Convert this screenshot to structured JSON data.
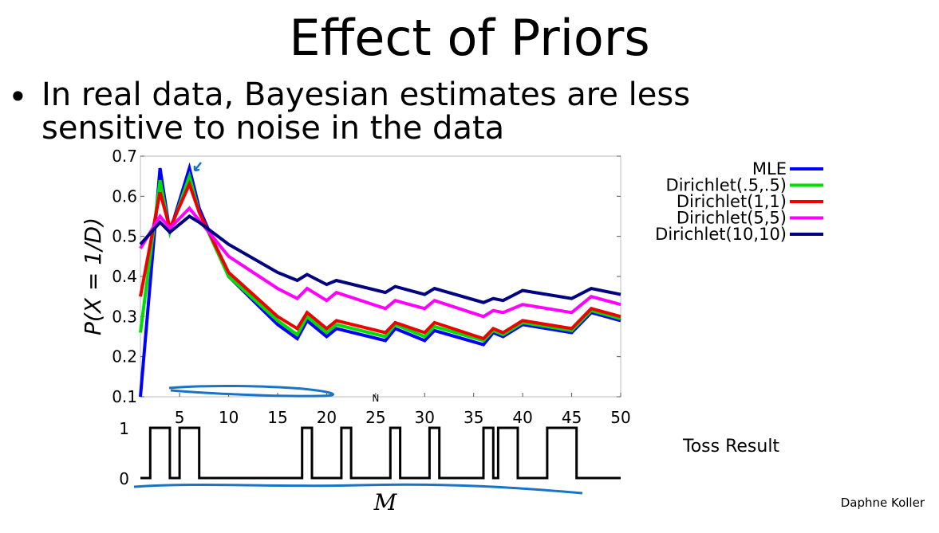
{
  "slide": {
    "title": "Effect of Priors",
    "bullet": "In real data, Bayesian estimates are less sensitive to noise in the data",
    "bullet_marker": "•",
    "author": "Daphne Koller"
  },
  "chart_data": [
    {
      "type": "line",
      "title": "",
      "xlabel": "",
      "ylabel": "P(X = 1/D)",
      "xlim": [
        1,
        50
      ],
      "ylim": [
        0.1,
        0.7
      ],
      "xticks": [
        "5",
        "10",
        "15",
        "20",
        "25",
        "30",
        "35",
        "40",
        "45",
        "50"
      ],
      "yticks": [
        "0.1",
        "0.2",
        "0.3",
        "0.4",
        "0.5",
        "0.6",
        "0.7"
      ],
      "legend_position": "right",
      "series": [
        {
          "name": "MLE",
          "color": "#0000ff",
          "values": [
            [
              1,
              0.1
            ],
            [
              3,
              0.67
            ],
            [
              4,
              0.51
            ],
            [
              6,
              0.67
            ],
            [
              7,
              0.57
            ],
            [
              10,
              0.4
            ],
            [
              15,
              0.28
            ],
            [
              17,
              0.245
            ],
            [
              18,
              0.29
            ],
            [
              20,
              0.25
            ],
            [
              21,
              0.27
            ],
            [
              26,
              0.24
            ],
            [
              27,
              0.27
            ],
            [
              30,
              0.24
            ],
            [
              31,
              0.265
            ],
            [
              36,
              0.23
            ],
            [
              37,
              0.26
            ],
            [
              38,
              0.25
            ],
            [
              40,
              0.28
            ],
            [
              45,
              0.26
            ],
            [
              47,
              0.31
            ],
            [
              50,
              0.29
            ]
          ]
        },
        {
          "name": "Dirichlet(.5,.5)",
          "color": "#00dd00",
          "values": [
            [
              1,
              0.26
            ],
            [
              3,
              0.64
            ],
            [
              4,
              0.51
            ],
            [
              6,
              0.65
            ],
            [
              7,
              0.56
            ],
            [
              10,
              0.4
            ],
            [
              15,
              0.29
            ],
            [
              17,
              0.255
            ],
            [
              18,
              0.3
            ],
            [
              20,
              0.26
            ],
            [
              21,
              0.28
            ],
            [
              26,
              0.25
            ],
            [
              27,
              0.28
            ],
            [
              30,
              0.25
            ],
            [
              31,
              0.275
            ],
            [
              36,
              0.24
            ],
            [
              37,
              0.265
            ],
            [
              38,
              0.255
            ],
            [
              40,
              0.285
            ],
            [
              45,
              0.265
            ],
            [
              47,
              0.315
            ],
            [
              50,
              0.295
            ]
          ]
        },
        {
          "name": "Dirichlet(1,1)",
          "color": "#ee0000",
          "values": [
            [
              1,
              0.35
            ],
            [
              3,
              0.61
            ],
            [
              4,
              0.52
            ],
            [
              6,
              0.63
            ],
            [
              7,
              0.56
            ],
            [
              10,
              0.41
            ],
            [
              15,
              0.3
            ],
            [
              17,
              0.27
            ],
            [
              18,
              0.31
            ],
            [
              20,
              0.27
            ],
            [
              21,
              0.29
            ],
            [
              26,
              0.26
            ],
            [
              27,
              0.285
            ],
            [
              30,
              0.26
            ],
            [
              31,
              0.285
            ],
            [
              36,
              0.245
            ],
            [
              37,
              0.27
            ],
            [
              38,
              0.26
            ],
            [
              40,
              0.29
            ],
            [
              45,
              0.27
            ],
            [
              47,
              0.32
            ],
            [
              50,
              0.3
            ]
          ]
        },
        {
          "name": "Dirichlet(5,5)",
          "color": "#ff00ff",
          "values": [
            [
              1,
              0.47
            ],
            [
              3,
              0.55
            ],
            [
              4,
              0.52
            ],
            [
              6,
              0.57
            ],
            [
              7,
              0.54
            ],
            [
              10,
              0.45
            ],
            [
              15,
              0.37
            ],
            [
              17,
              0.345
            ],
            [
              18,
              0.37
            ],
            [
              20,
              0.34
            ],
            [
              21,
              0.36
            ],
            [
              26,
              0.32
            ],
            [
              27,
              0.34
            ],
            [
              30,
              0.32
            ],
            [
              31,
              0.34
            ],
            [
              36,
              0.3
            ],
            [
              37,
              0.315
            ],
            [
              38,
              0.31
            ],
            [
              40,
              0.33
            ],
            [
              45,
              0.31
            ],
            [
              47,
              0.35
            ],
            [
              50,
              0.33
            ]
          ]
        },
        {
          "name": "Dirichlet(10,10)",
          "color": "#000080",
          "values": [
            [
              1,
              0.48
            ],
            [
              3,
              0.535
            ],
            [
              4,
              0.51
            ],
            [
              6,
              0.55
            ],
            [
              7,
              0.535
            ],
            [
              10,
              0.48
            ],
            [
              15,
              0.41
            ],
            [
              17,
              0.39
            ],
            [
              18,
              0.405
            ],
            [
              20,
              0.38
            ],
            [
              21,
              0.39
            ],
            [
              26,
              0.36
            ],
            [
              27,
              0.375
            ],
            [
              30,
              0.355
            ],
            [
              31,
              0.37
            ],
            [
              36,
              0.335
            ],
            [
              37,
              0.345
            ],
            [
              38,
              0.34
            ],
            [
              40,
              0.365
            ],
            [
              45,
              0.345
            ],
            [
              47,
              0.37
            ],
            [
              50,
              0.355
            ]
          ]
        }
      ],
      "annotations": [
        "N"
      ]
    },
    {
      "type": "line",
      "title": "Toss Result",
      "xlabel": "M",
      "ylabel": "",
      "xlim": [
        1,
        50
      ],
      "ylim": [
        0,
        1
      ],
      "yticks": [
        "1",
        "0"
      ],
      "series": [
        {
          "name": "",
          "color": "#000000",
          "steps": [
            [
              1,
              0
            ],
            [
              2,
              1
            ],
            [
              4,
              0
            ],
            [
              5,
              1
            ],
            [
              7,
              0
            ],
            [
              17.5,
              1
            ],
            [
              18.5,
              0
            ],
            [
              21.5,
              1
            ],
            [
              22.5,
              0
            ],
            [
              26.5,
              1
            ],
            [
              27.5,
              0
            ],
            [
              30.5,
              1
            ],
            [
              31.5,
              0
            ],
            [
              36,
              1
            ],
            [
              37,
              0
            ],
            [
              37.5,
              1
            ],
            [
              39.5,
              0
            ],
            [
              42.5,
              1
            ],
            [
              45.5,
              0
            ],
            [
              50,
              0
            ]
          ]
        }
      ]
    }
  ]
}
